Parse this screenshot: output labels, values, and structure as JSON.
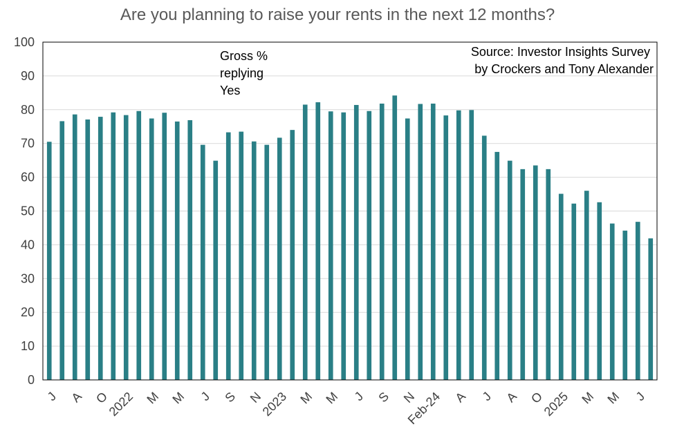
{
  "chart_data": {
    "type": "bar",
    "title": "Are you planning to raise your rents in the next 12 months?",
    "annotation_lines": [
      "Gross %",
      "replying",
      "Yes"
    ],
    "source_lines": [
      "Source: Investor Insights Survey",
      "by Crockers and Tony Alexander"
    ],
    "ylim": [
      0,
      100
    ],
    "yticks": [
      0,
      10,
      20,
      30,
      40,
      50,
      60,
      70,
      80,
      90,
      100
    ],
    "grid": true,
    "legend": "none",
    "bar_color": "#2a7f86",
    "values": [
      70.5,
      76.6,
      78.6,
      77.1,
      77.9,
      79.2,
      78.4,
      79.6,
      77.4,
      79.1,
      76.5,
      76.9,
      69.6,
      64.9,
      73.3,
      73.5,
      70.6,
      69.6,
      71.7,
      74.0,
      81.5,
      82.2,
      79.5,
      79.2,
      81.4,
      79.6,
      81.8,
      84.2,
      77.4,
      81.7,
      81.8,
      78.3,
      79.8,
      79.9,
      72.3,
      67.5,
      64.9,
      62.4,
      63.5,
      62.4,
      55.1,
      52.2,
      56.0,
      52.6,
      46.3,
      44.2,
      46.8,
      41.9
    ],
    "xtick_labels": [
      {
        "index": 0,
        "label": "J"
      },
      {
        "index": 2,
        "label": "A"
      },
      {
        "index": 4,
        "label": "O"
      },
      {
        "index": 6,
        "label": "2022"
      },
      {
        "index": 8,
        "label": "M"
      },
      {
        "index": 10,
        "label": "M"
      },
      {
        "index": 12,
        "label": "J"
      },
      {
        "index": 14,
        "label": "S"
      },
      {
        "index": 16,
        "label": "N"
      },
      {
        "index": 18,
        "label": "2023"
      },
      {
        "index": 20,
        "label": "M"
      },
      {
        "index": 22,
        "label": "M"
      },
      {
        "index": 24,
        "label": "J"
      },
      {
        "index": 26,
        "label": "S"
      },
      {
        "index": 28,
        "label": "N"
      },
      {
        "index": 30,
        "label": "Feb-24"
      },
      {
        "index": 32,
        "label": "A"
      },
      {
        "index": 34,
        "label": "J"
      },
      {
        "index": 36,
        "label": "A"
      },
      {
        "index": 38,
        "label": "O"
      },
      {
        "index": 40,
        "label": "2025"
      },
      {
        "index": 42,
        "label": "M"
      },
      {
        "index": 44,
        "label": "M"
      },
      {
        "index": 46,
        "label": "J"
      }
    ]
  }
}
